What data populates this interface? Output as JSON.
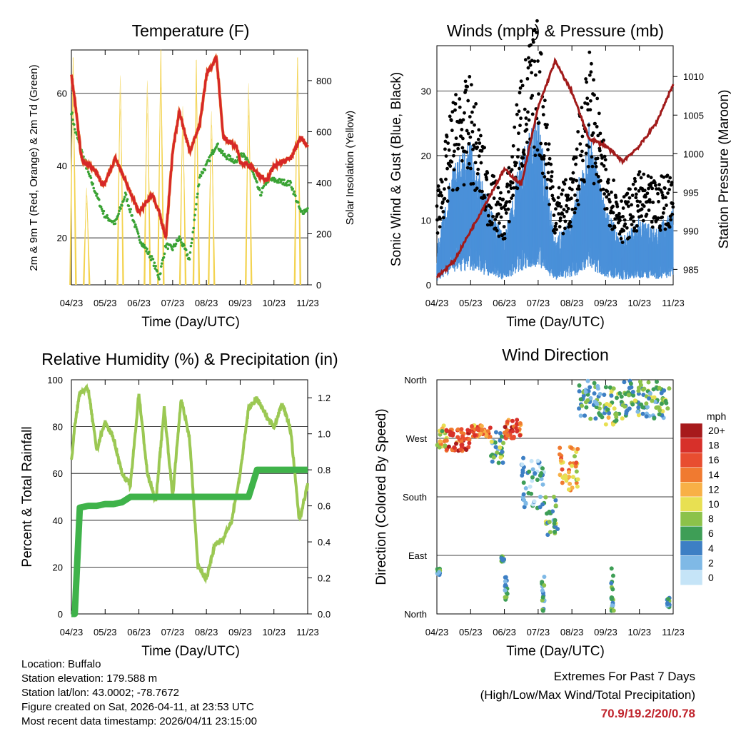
{
  "x_ticks": [
    "04/23",
    "05/23",
    "06/23",
    "07/23",
    "08/23",
    "09/23",
    "10/23",
    "11/23"
  ],
  "x_label": "Time (Day/UTC)",
  "colors": {
    "temp_red": "#d62728",
    "temp_orange": "#e8792a",
    "dewpoint_green": "#3aa335",
    "solar_yellow": "#f3d350",
    "wind_blue": "#4a90d9",
    "gust_black": "#000000",
    "pressure_maroon": "#a11a1a",
    "rh_light_green": "#9bc853",
    "precip_green": "#3fb34a",
    "extremes_red": "#c0242c"
  },
  "chart_data": [
    {
      "id": "temperature",
      "type": "line",
      "title": "Temperature (F)",
      "ylabel_left": "2m & 9m T (Red, Orange) & 2m Td (Green)",
      "ylabel_right": "Solar Insolation (Yellow)",
      "ylim_left": [
        7,
        72
      ],
      "ylim_right": [
        0,
        920
      ],
      "yticks_left": [
        20,
        40,
        60
      ],
      "yticks_right": [
        0,
        200,
        400,
        600,
        800
      ],
      "grid": "horizontal",
      "x": [
        0,
        0.1,
        0.3,
        0.5,
        0.7,
        0.9,
        1.0,
        1.3,
        1.6,
        2.0,
        2.4,
        2.6,
        2.8,
        3.0,
        3.2,
        3.5,
        3.8,
        4.0,
        4.3,
        4.5,
        4.9,
        5.0,
        5.3,
        5.6,
        5.8,
        6.0,
        6.5,
        6.8,
        7.0
      ],
      "series": [
        {
          "name": "2m T",
          "color": "temp_red",
          "values": [
            65,
            58,
            42,
            40,
            39,
            35,
            35,
            42,
            36,
            27,
            32,
            27,
            20,
            44,
            55,
            44,
            51,
            65,
            70,
            48,
            45,
            41,
            40,
            37,
            36,
            40,
            42,
            48,
            45
          ]
        },
        {
          "name": "2m Td",
          "color": "dewpoint_green",
          "values": [
            55,
            50,
            44,
            38,
            33,
            28,
            26,
            24,
            32,
            20,
            14,
            9,
            18,
            17,
            20,
            14,
            37,
            40,
            46,
            43,
            41,
            44,
            40,
            32,
            36,
            36,
            35,
            27,
            28
          ]
        },
        {
          "name": "Solar Insolation",
          "color": "solar_yellow",
          "axis": "right",
          "peaks": [
            {
              "x": 0.05,
              "v": 890
            },
            {
              "x": 0.45,
              "v": 380
            },
            {
              "x": 1.45,
              "v": 820
            },
            {
              "x": 2.25,
              "v": 800
            },
            {
              "x": 2.65,
              "v": 920
            },
            {
              "x": 3.3,
              "v": 700
            },
            {
              "x": 3.7,
              "v": 880
            },
            {
              "x": 4.15,
              "v": 680
            },
            {
              "x": 5.25,
              "v": 790
            },
            {
              "x": 6.7,
              "v": 890
            }
          ]
        }
      ]
    },
    {
      "id": "winds",
      "type": "line",
      "title": "Winds (mph) & Pressure (mb)",
      "ylabel_left": "Sonic Wind & Gust (Blue, Black)",
      "ylabel_right": "Station Pressure (Maroon)",
      "ylim_left": [
        0,
        37
      ],
      "ylim_right": [
        983,
        1014
      ],
      "yticks_left": [
        0,
        10,
        20,
        30
      ],
      "yticks_right": [
        985,
        990,
        995,
        1000,
        1005,
        1010
      ],
      "grid": "horizontal",
      "x": [
        0,
        0.5,
        1.0,
        1.5,
        2.0,
        2.5,
        3.0,
        3.5,
        4.0,
        4.5,
        5.0,
        5.5,
        6.0,
        6.5,
        7.0
      ],
      "series": [
        {
          "name": "Sonic Wind",
          "color": "wind_blue",
          "values": [
            4,
            13,
            15,
            9,
            5,
            14,
            18,
            5,
            7,
            17,
            8,
            5,
            7,
            6,
            8
          ]
        },
        {
          "name": "Gust",
          "color": "gust_black",
          "values": [
            11,
            22,
            24,
            14,
            10,
            25,
            31,
            11,
            13,
            28,
            15,
            10,
            13,
            12,
            14
          ]
        },
        {
          "name": "Station Pressure",
          "color": "pressure_maroon",
          "axis": "right",
          "values": [
            984,
            986,
            990,
            994,
            998,
            996,
            1006,
            1012,
            1008,
            1002,
            1001,
            999,
            1001,
            1004,
            1009
          ]
        }
      ]
    },
    {
      "id": "humidity",
      "type": "line",
      "title": "Relative Humidity (%) & Precipitation (in)",
      "ylabel_left": "Percent & Total Rainfall",
      "ylim_left": [
        0,
        100
      ],
      "ylim_right": [
        0,
        1.3
      ],
      "yticks_left": [
        0,
        20,
        40,
        60,
        80,
        100
      ],
      "yticks_right": [
        0.0,
        0.2,
        0.4,
        0.6,
        0.8,
        1.0,
        1.2
      ],
      "grid": "horizontal",
      "x": [
        0,
        0.1,
        0.25,
        0.5,
        0.75,
        1.0,
        1.25,
        1.5,
        1.75,
        2.0,
        2.25,
        2.5,
        2.75,
        3.0,
        3.25,
        3.5,
        3.75,
        4.0,
        4.25,
        4.5,
        4.75,
        5.0,
        5.25,
        5.5,
        5.75,
        6.0,
        6.25,
        6.5,
        6.75,
        7.0
      ],
      "series": [
        {
          "name": "Relative Humidity",
          "color": "rh_light_green",
          "values": [
            65,
            80,
            95,
            96,
            70,
            82,
            75,
            60,
            55,
            94,
            60,
            48,
            88,
            50,
            92,
            75,
            20,
            15,
            30,
            32,
            40,
            60,
            88,
            92,
            85,
            80,
            90,
            78,
            40,
            55
          ]
        },
        {
          "name": "Total Rainfall",
          "color": "precip_green",
          "axis": "right",
          "values": [
            0,
            0,
            0.59,
            0.6,
            0.6,
            0.61,
            0.61,
            0.62,
            0.65,
            0.65,
            0.65,
            0.65,
            0.65,
            0.65,
            0.65,
            0.65,
            0.65,
            0.65,
            0.65,
            0.65,
            0.65,
            0.65,
            0.65,
            0.8,
            0.8,
            0.8,
            0.8,
            0.8,
            0.8,
            0.8
          ]
        }
      ]
    },
    {
      "id": "wind_direction",
      "type": "scatter",
      "title": "Wind Direction",
      "ylabel_left": "Direction (Colored By Speed)",
      "yticks_labels": [
        "North",
        "West",
        "South",
        "East",
        "North"
      ],
      "grid": "horizontal",
      "colorbar": {
        "title": "mph",
        "labels": [
          "20+",
          "18",
          "16",
          "14",
          "12",
          "10",
          "8",
          "6",
          "4",
          "2",
          "0"
        ],
        "colors": [
          "#a71a1c",
          "#d7302a",
          "#e84d30",
          "#f07a30",
          "#f8b046",
          "#e8e052",
          "#8cc24a",
          "#3e9e56",
          "#3d7fc4",
          "#7fb9e6",
          "#c5e4f7"
        ]
      },
      "clusters": [
        {
          "x0": 0.0,
          "x1": 0.3,
          "d0": 250,
          "d1": 290,
          "speed": 10
        },
        {
          "x0": 0.2,
          "x1": 1.0,
          "d0": 250,
          "d1": 285,
          "speed": 16
        },
        {
          "x0": 1.0,
          "x1": 1.6,
          "d0": 270,
          "d1": 290,
          "speed": 14
        },
        {
          "x0": 1.6,
          "x1": 2.0,
          "d0": 230,
          "d1": 280,
          "speed": 6
        },
        {
          "x0": 2.0,
          "x1": 2.5,
          "d0": 270,
          "d1": 300,
          "speed": 16
        },
        {
          "x0": 2.5,
          "x1": 3.2,
          "d0": 160,
          "d1": 240,
          "speed": 3
        },
        {
          "x0": 3.2,
          "x1": 3.6,
          "d0": 120,
          "d1": 180,
          "speed": 6
        },
        {
          "x0": 3.6,
          "x1": 4.2,
          "d0": 190,
          "d1": 260,
          "speed": 12
        },
        {
          "x0": 4.2,
          "x1": 5.0,
          "d0": 300,
          "d1": 360,
          "speed": 5
        },
        {
          "x0": 5.0,
          "x1": 5.5,
          "d0": 290,
          "d1": 350,
          "speed": 8
        },
        {
          "x0": 5.5,
          "x1": 6.9,
          "d0": 300,
          "d1": 360,
          "speed": 6
        }
      ]
    }
  ],
  "info": {
    "location": "Location: Buffalo",
    "elevation": "Station elevation: 179.588 m",
    "latlon": "Station lat/lon: 43.0002; -78.7672",
    "created": "Figure created on Sat, 2026-04-11, at 23:53 UTC",
    "recent": "Most recent data timestamp: 2026/04/11 23:15:00"
  },
  "extremes": {
    "line1": "Extremes For Past 7 Days",
    "line2": "(High/Low/Max Wind/Total Precipitation)",
    "values": "70.9/19.2/20/0.78"
  }
}
